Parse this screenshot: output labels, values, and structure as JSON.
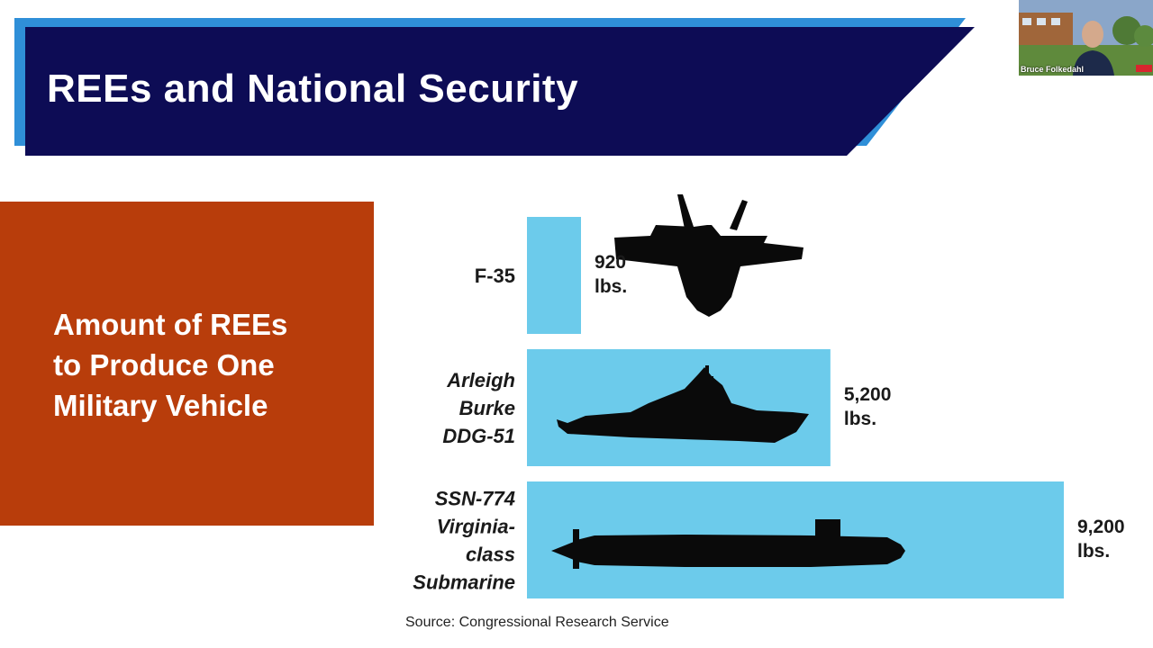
{
  "slide": {
    "title": "REEs and National Security",
    "callout": "Amount of REEs\nto Produce One\nMilitary Vehicle",
    "source": "Source: Congressional Research Service"
  },
  "webcam": {
    "participant_name": "Bruce Folkedahl"
  },
  "colors": {
    "banner_navy": "#0d0c55",
    "banner_accent": "#2f8fd8",
    "callout_orange": "#b83d0b",
    "bar_blue": "#6ccbeb",
    "silhouette": "#0a0a0a"
  },
  "chart_data": {
    "type": "bar",
    "orientation": "horizontal",
    "categories": [
      [
        "F-35"
      ],
      [
        "Arleigh",
        "Burke",
        "DDG-51"
      ],
      [
        "SSN-774",
        "Virginia-",
        "class",
        "Submarine"
      ]
    ],
    "values": [
      920,
      5200,
      9200
    ],
    "value_labels": [
      [
        "920",
        "lbs."
      ],
      [
        "5,200",
        "lbs."
      ],
      [
        "9,200",
        "lbs."
      ]
    ],
    "category_italic": [
      false,
      true,
      true
    ],
    "icons": [
      "fighter-jet-icon",
      "destroyer-ship-icon",
      "submarine-icon"
    ],
    "unit": "lbs.",
    "xlim": [
      0,
      9200
    ],
    "grid": false,
    "legend": "none"
  }
}
